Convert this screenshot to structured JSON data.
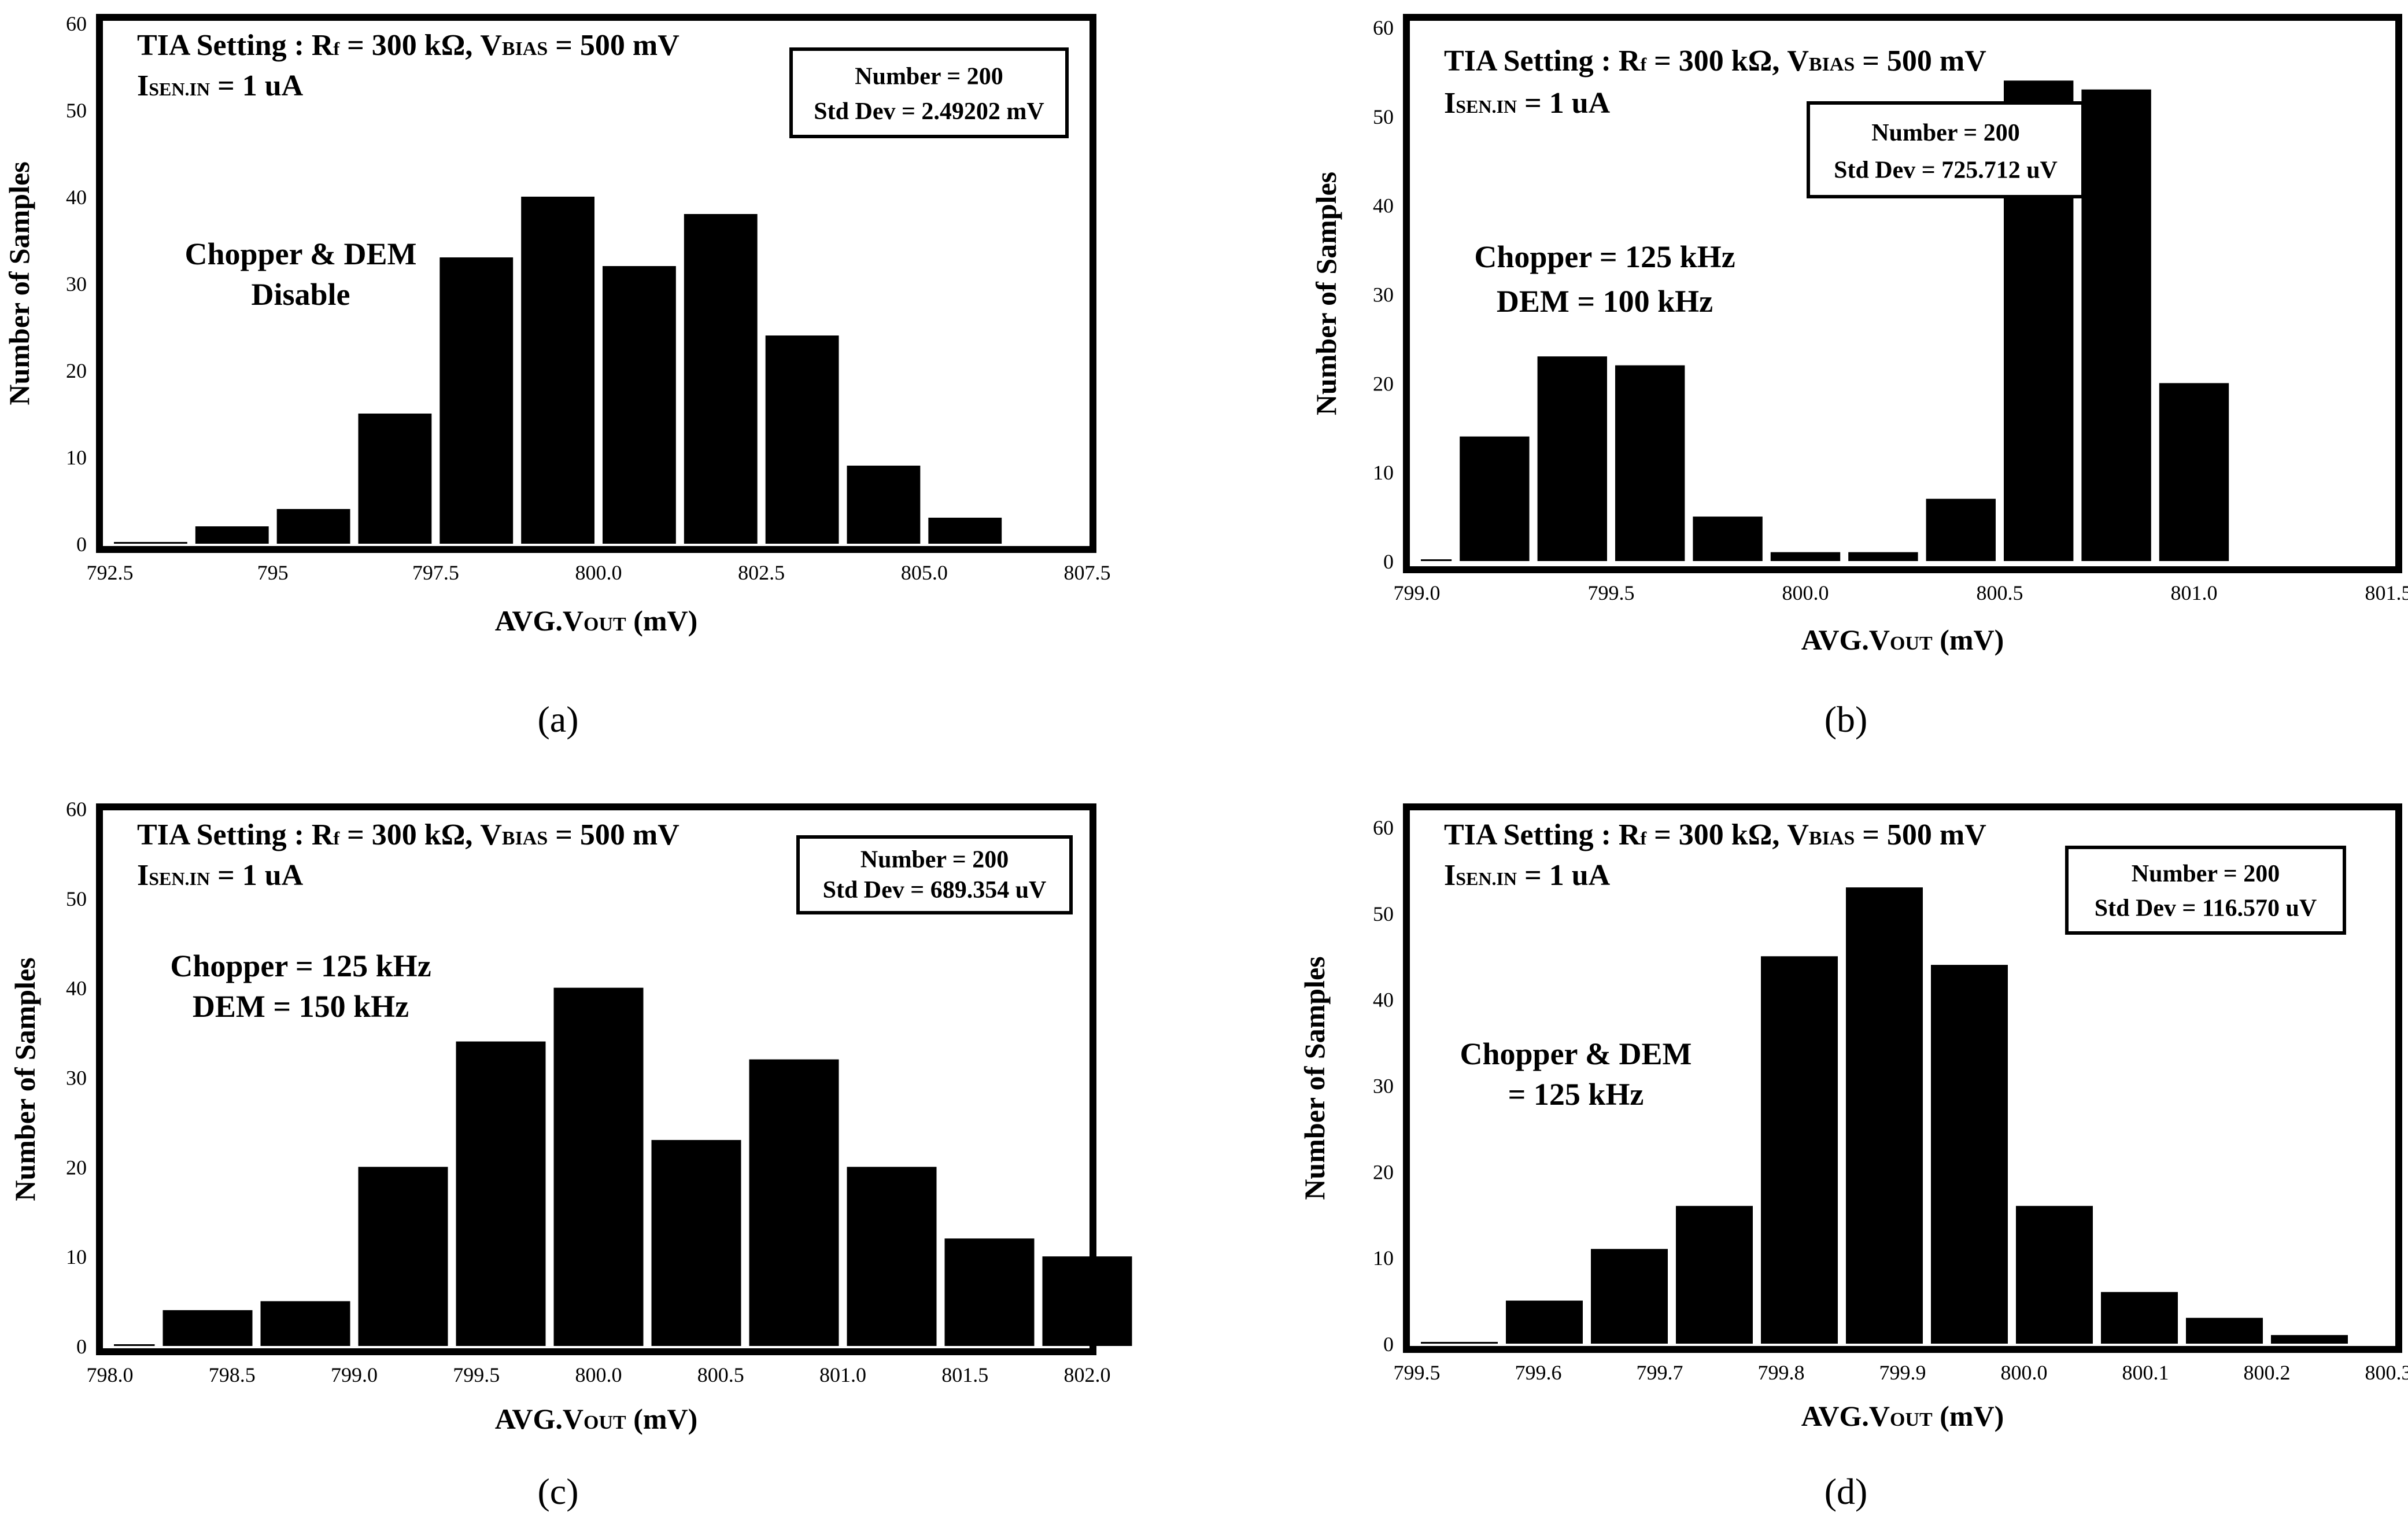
{
  "figure": {
    "panels": [
      {
        "panel_label": "(a)",
        "setting_line1_prefix": "TIA Setting : R",
        "setting_line1_sub": "f",
        "setting_line1_mid": " = 300 kΩ, V",
        "setting_line1_bias": "BIAS",
        "setting_line1_suffix": " = 500 mV",
        "setting_line2_I": "I",
        "setting_line2_sub": "SEN.IN",
        "setting_line2_suffix": " = 1 uA",
        "stats_number": "Number = 200",
        "stats_stddev": "Std Dev = 2.49202 mV",
        "condition": [
          "Chopper & DEM",
          "Disable"
        ]
      },
      {
        "panel_label": "(b)",
        "setting_line1_prefix": "TIA Setting : R",
        "setting_line1_sub": "f",
        "setting_line1_mid": " = 300 kΩ, V",
        "setting_line1_bias": "BIAS",
        "setting_line1_suffix": " = 500 mV",
        "setting_line2_I": "I",
        "setting_line2_sub": "SEN.IN",
        "setting_line2_suffix": " = 1 uA",
        "stats_number": "Number = 200",
        "stats_stddev": "Std Dev = 725.712 uV",
        "condition": [
          "Chopper = 125 kHz",
          "DEM = 100 kHz"
        ]
      },
      {
        "panel_label": "(c)",
        "setting_line1_prefix": "TIA Setting : R",
        "setting_line1_sub": "f",
        "setting_line1_mid": " = 300 kΩ, V",
        "setting_line1_bias": "BIAS",
        "setting_line1_suffix": " = 500 mV",
        "setting_line2_I": "I",
        "setting_line2_sub": "SEN.IN",
        "setting_line2_suffix": " = 1 uA",
        "stats_number": "Number = 200",
        "stats_stddev": "Std Dev = 689.354 uV",
        "condition": [
          "Chopper = 125 kHz",
          "DEM = 150 kHz"
        ]
      },
      {
        "panel_label": "(d)",
        "setting_line1_prefix": "TIA Setting : R",
        "setting_line1_sub": "f",
        "setting_line1_mid": " = 300 kΩ, V",
        "setting_line1_bias": "BIAS",
        "setting_line1_suffix": " = 500 mV",
        "setting_line2_I": "I",
        "setting_line2_sub": "SEN.IN",
        "setting_line2_suffix": " = 1 uA",
        "stats_number": "Number = 200",
        "stats_stddev": "Std Dev = 116.570 uV",
        "condition": [
          "Chopper & DEM",
          "= 125 kHz"
        ]
      }
    ]
  },
  "chart_data": [
    {
      "type": "bar",
      "title": "",
      "xlabel_prefix": "AVG.V",
      "xlabel_sub": "OUT",
      "xlabel_suffix": " (mV)",
      "ylabel": "Number of Samples",
      "xlim": [
        792.5,
        807.5
      ],
      "ylim": [
        0,
        60
      ],
      "xticks": [
        792.5,
        795,
        797.5,
        800,
        802.5,
        805,
        807.5
      ],
      "xtick_labels": [
        "792.5",
        "795",
        "797.5",
        "800.0",
        "802.5",
        "805.0",
        "807.5"
      ],
      "yticks": [
        0,
        10,
        20,
        30,
        40,
        50,
        60
      ],
      "ytick_labels": [
        "0",
        "10",
        "20",
        "30",
        "40",
        "50",
        "60"
      ],
      "bins": [
        {
          "x0": 792.5,
          "x1": 793.75,
          "count": 0
        },
        {
          "x0": 793.75,
          "x1": 795.0,
          "count": 2
        },
        {
          "x0": 795.0,
          "x1": 796.25,
          "count": 4
        },
        {
          "x0": 796.25,
          "x1": 797.5,
          "count": 15
        },
        {
          "x0": 797.5,
          "x1": 798.75,
          "count": 33
        },
        {
          "x0": 798.75,
          "x1": 800.0,
          "count": 40
        },
        {
          "x0": 800.0,
          "x1": 801.25,
          "count": 32
        },
        {
          "x0": 801.25,
          "x1": 802.5,
          "count": 38
        },
        {
          "x0": 802.5,
          "x1": 803.75,
          "count": 24
        },
        {
          "x0": 803.75,
          "x1": 805.0,
          "count": 9
        },
        {
          "x0": 805.0,
          "x1": 806.25,
          "count": 3
        }
      ]
    },
    {
      "type": "bar",
      "title": "",
      "xlabel_prefix": "AVG.V",
      "xlabel_sub": "OUT",
      "xlabel_suffix": " (mV)",
      "ylabel": "Number of Samples",
      "xlim": [
        799.0,
        801.5
      ],
      "ylim": [
        0,
        60
      ],
      "xticks": [
        799.0,
        799.5,
        800.0,
        800.5,
        801.0,
        801.5
      ],
      "xtick_labels": [
        "799.0",
        "799.5",
        "800.0",
        "800.5",
        "801.0",
        "801.5"
      ],
      "yticks": [
        0,
        10,
        20,
        30,
        40,
        50,
        60
      ],
      "ytick_labels": [
        "0",
        "10",
        "20",
        "30",
        "40",
        "50",
        "60"
      ],
      "bins": [
        {
          "x0": 799.0,
          "x1": 799.1,
          "count": 0
        },
        {
          "x0": 799.1,
          "x1": 799.3,
          "count": 14
        },
        {
          "x0": 799.3,
          "x1": 799.5,
          "count": 23
        },
        {
          "x0": 799.5,
          "x1": 799.7,
          "count": 22
        },
        {
          "x0": 799.7,
          "x1": 799.9,
          "count": 5
        },
        {
          "x0": 799.9,
          "x1": 800.1,
          "count": 1
        },
        {
          "x0": 800.1,
          "x1": 800.3,
          "count": 1
        },
        {
          "x0": 800.3,
          "x1": 800.5,
          "count": 7
        },
        {
          "x0": 800.5,
          "x1": 800.7,
          "count": 54
        },
        {
          "x0": 800.7,
          "x1": 800.9,
          "count": 53
        },
        {
          "x0": 800.9,
          "x1": 801.1,
          "count": 20
        }
      ]
    },
    {
      "type": "bar",
      "title": "",
      "xlabel_prefix": "AVG.V",
      "xlabel_sub": "OUT",
      "xlabel_suffix": " (mV)",
      "ylabel": "Number of Samples",
      "xlim": [
        798.0,
        802.0
      ],
      "ylim": [
        0,
        60
      ],
      "xticks": [
        798.0,
        798.5,
        799.0,
        799.5,
        800.0,
        800.5,
        801.0,
        801.5,
        802.0
      ],
      "xtick_labels": [
        "798.0",
        "798.5",
        "799.0",
        "799.5",
        "800.0",
        "800.5",
        "801.0",
        "801.5",
        "802.0"
      ],
      "yticks": [
        0,
        10,
        20,
        30,
        40,
        50,
        60
      ],
      "ytick_labels": [
        "0",
        "10",
        "20",
        "30",
        "40",
        "50",
        "60"
      ],
      "bins": [
        {
          "x0": 798.0,
          "x1": 798.2,
          "count": 0
        },
        {
          "x0": 798.2,
          "x1": 798.6,
          "count": 4
        },
        {
          "x0": 798.6,
          "x1": 799.0,
          "count": 5
        },
        {
          "x0": 799.0,
          "x1": 799.4,
          "count": 20
        },
        {
          "x0": 799.4,
          "x1": 799.8,
          "count": 34
        },
        {
          "x0": 799.8,
          "x1": 800.2,
          "count": 40
        },
        {
          "x0": 800.2,
          "x1": 800.6,
          "count": 23
        },
        {
          "x0": 800.6,
          "x1": 801.0,
          "count": 32
        },
        {
          "x0": 801.0,
          "x1": 801.4,
          "count": 20
        },
        {
          "x0": 801.4,
          "x1": 801.8,
          "count": 12
        },
        {
          "x0": 801.8,
          "x1": 802.2,
          "count": 10
        }
      ]
    },
    {
      "type": "bar",
      "title": "",
      "xlabel_prefix": "AVG.V",
      "xlabel_sub": "OUT",
      "xlabel_suffix": " (mV)",
      "ylabel": "Number of Samples",
      "xlim": [
        799.5,
        800.3
      ],
      "ylim": [
        0,
        60
      ],
      "xticks": [
        799.5,
        799.6,
        799.7,
        799.8,
        799.9,
        800.0,
        800.1,
        800.2,
        800.3
      ],
      "xtick_labels": [
        "799.5",
        "799.6",
        "799.7",
        "799.8",
        "799.9",
        "800.0",
        "800.1",
        "800.2",
        "800.3"
      ],
      "yticks": [
        0,
        10,
        20,
        30,
        40,
        50,
        60
      ],
      "ytick_labels": [
        "0",
        "10",
        "20",
        "30",
        "40",
        "50",
        "60"
      ],
      "bins": [
        {
          "x0": 799.5,
          "x1": 799.57,
          "count": 0
        },
        {
          "x0": 799.57,
          "x1": 799.64,
          "count": 5
        },
        {
          "x0": 799.64,
          "x1": 799.71,
          "count": 11
        },
        {
          "x0": 799.71,
          "x1": 799.78,
          "count": 16
        },
        {
          "x0": 799.78,
          "x1": 799.85,
          "count": 45
        },
        {
          "x0": 799.85,
          "x1": 799.92,
          "count": 53
        },
        {
          "x0": 799.92,
          "x1": 799.99,
          "count": 44
        },
        {
          "x0": 799.99,
          "x1": 800.06,
          "count": 16
        },
        {
          "x0": 800.06,
          "x1": 800.13,
          "count": 6
        },
        {
          "x0": 800.13,
          "x1": 800.2,
          "count": 3
        },
        {
          "x0": 800.2,
          "x1": 800.27,
          "count": 1
        }
      ]
    }
  ]
}
